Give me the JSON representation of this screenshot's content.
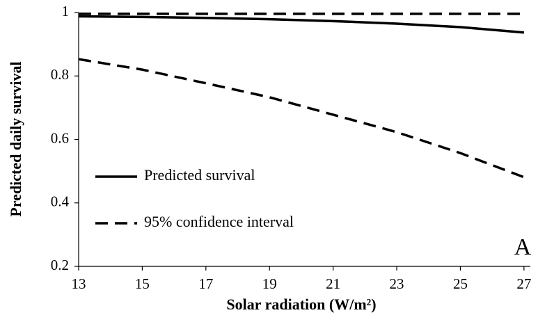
{
  "chart_data": {
    "type": "line",
    "x": [
      13,
      15,
      17,
      19,
      21,
      23,
      25,
      27
    ],
    "series": [
      {
        "name": "Predicted survival",
        "color": "#000000",
        "style": "solid",
        "values": [
          0.988,
          0.986,
          0.983,
          0.979,
          0.973,
          0.965,
          0.954,
          0.937
        ]
      },
      {
        "name": "95% confidence interval",
        "color": "#000000",
        "style": "dashed",
        "lower": [
          0.853,
          0.82,
          0.777,
          0.733,
          0.678,
          0.623,
          0.557,
          0.481
        ],
        "upper": [
          0.996,
          0.996,
          0.996,
          0.996,
          0.996,
          0.996,
          0.996,
          0.996
        ]
      }
    ],
    "xlim": [
      13,
      27.2
    ],
    "ylim": [
      0.2,
      1
    ],
    "xticks": [
      13,
      15,
      17,
      19,
      21,
      23,
      25,
      27
    ],
    "yticks": [
      0.2,
      0.4,
      0.6,
      0.8,
      1
    ],
    "xlabel": "Solar radiation (W/m²)",
    "ylabel": "Predicted daily survival",
    "annotation": "A",
    "grid": false,
    "legend": "lower left"
  }
}
